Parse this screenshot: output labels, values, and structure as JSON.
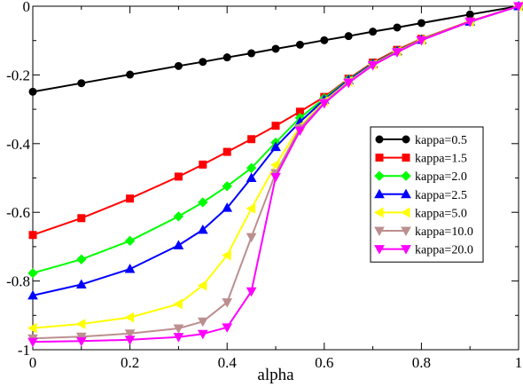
{
  "chart_data": {
    "type": "line",
    "title": "",
    "xlabel": "alpha",
    "ylabel": "",
    "xlim": [
      0,
      1
    ],
    "ylim": [
      -1,
      0
    ],
    "grid": false,
    "legend_position": "right",
    "x_ticks": [
      "0",
      "0.2",
      "0.4",
      "0.6",
      "0.8",
      "1"
    ],
    "y_ticks": [
      "0",
      "-0.2",
      "-0.4",
      "-0.6",
      "-0.8",
      "-1"
    ],
    "series": [
      {
        "name": "kappa=0.5",
        "color": "#000000",
        "marker": "circle",
        "x": [
          0,
          0.1,
          0.2,
          0.3,
          0.35,
          0.4,
          0.45,
          0.5,
          0.55,
          0.6,
          0.65,
          0.7,
          0.75,
          0.8,
          0.9,
          1.0
        ],
        "y": [
          -0.249,
          -0.224,
          -0.199,
          -0.174,
          -0.162,
          -0.149,
          -0.137,
          -0.124,
          -0.112,
          -0.099,
          -0.087,
          -0.074,
          -0.062,
          -0.049,
          -0.024,
          0.0
        ]
      },
      {
        "name": "kappa=1.5",
        "color": "#ff0000",
        "marker": "square",
        "x": [
          0,
          0.1,
          0.2,
          0.3,
          0.35,
          0.4,
          0.45,
          0.5,
          0.55,
          0.6,
          0.65,
          0.7,
          0.75,
          0.8,
          0.9,
          1.0
        ],
        "y": [
          -0.666,
          -0.617,
          -0.56,
          -0.496,
          -0.461,
          -0.424,
          -0.387,
          -0.348,
          -0.307,
          -0.264,
          -0.211,
          -0.164,
          -0.127,
          -0.095,
          -0.044,
          0.0
        ]
      },
      {
        "name": "kappa=2.0",
        "color": "#00ff00",
        "marker": "diamond",
        "x": [
          0,
          0.1,
          0.2,
          0.3,
          0.35,
          0.4,
          0.45,
          0.5,
          0.55,
          0.6,
          0.65,
          0.7,
          0.75,
          0.8,
          0.9,
          1.0
        ],
        "y": [
          -0.777,
          -0.737,
          -0.683,
          -0.612,
          -0.571,
          -0.524,
          -0.471,
          -0.397,
          -0.325,
          -0.268,
          -0.213,
          -0.167,
          -0.13,
          -0.097,
          -0.045,
          0.0
        ]
      },
      {
        "name": "kappa=2.5",
        "color": "#0000ff",
        "marker": "triangle-up",
        "x": [
          0,
          0.1,
          0.2,
          0.3,
          0.35,
          0.4,
          0.45,
          0.5,
          0.55,
          0.6,
          0.65,
          0.7,
          0.75,
          0.8,
          0.9,
          1.0
        ],
        "y": [
          -0.842,
          -0.81,
          -0.765,
          -0.696,
          -0.651,
          -0.587,
          -0.5,
          -0.41,
          -0.337,
          -0.272,
          -0.215,
          -0.168,
          -0.131,
          -0.098,
          -0.045,
          0.0
        ]
      },
      {
        "name": "kappa=5.0",
        "color": "#ffff00",
        "marker": "triangle-left",
        "x": [
          0,
          0.1,
          0.2,
          0.3,
          0.35,
          0.4,
          0.45,
          0.5,
          0.55,
          0.6,
          0.65,
          0.7,
          0.75,
          0.8,
          0.9,
          1.0
        ],
        "y": [
          -0.937,
          -0.925,
          -0.906,
          -0.867,
          -0.813,
          -0.725,
          -0.589,
          -0.462,
          -0.35,
          -0.277,
          -0.219,
          -0.17,
          -0.132,
          -0.098,
          -0.045,
          0.0
        ]
      },
      {
        "name": "kappa=10.0",
        "color": "#bc8f8f",
        "marker": "triangle-down",
        "x": [
          0,
          0.1,
          0.2,
          0.3,
          0.35,
          0.4,
          0.45,
          0.5,
          0.55,
          0.6,
          0.65,
          0.7,
          0.75,
          0.8,
          0.9,
          1.0
        ],
        "y": [
          -0.967,
          -0.962,
          -0.953,
          -0.938,
          -0.918,
          -0.862,
          -0.672,
          -0.486,
          -0.355,
          -0.28,
          -0.221,
          -0.171,
          -0.133,
          -0.099,
          -0.045,
          0.0
        ]
      },
      {
        "name": "kappa=20.0",
        "color": "#ff00ff",
        "marker": "triangle-down",
        "x": [
          0,
          0.1,
          0.2,
          0.3,
          0.35,
          0.4,
          0.45,
          0.5,
          0.55,
          0.6,
          0.65,
          0.7,
          0.75,
          0.8,
          0.9,
          1.0
        ],
        "y": [
          -0.977,
          -0.975,
          -0.971,
          -0.963,
          -0.954,
          -0.935,
          -0.83,
          -0.497,
          -0.362,
          -0.283,
          -0.223,
          -0.172,
          -0.134,
          -0.099,
          -0.045,
          0.0
        ]
      }
    ]
  }
}
